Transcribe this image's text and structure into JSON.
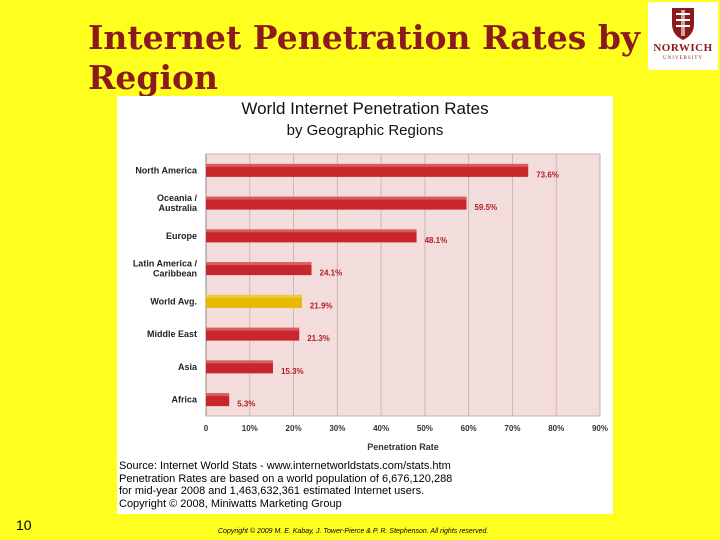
{
  "slide": {
    "title": "Internet Penetration Rates by Region",
    "slide_number": "10",
    "copyright": "Copyright © 2009 M. E. Kabay, J. Tower-Pierce & P. R. Stephenson.  All rights reserved."
  },
  "logo": {
    "name": "NORWICH",
    "subtitle": "UNIVERSITY"
  },
  "colors": {
    "background": "#FFFF1F",
    "title": "#8B1A1A",
    "bar": "#C8262A",
    "highlight_bar": "#E6B800",
    "plot_bg": "#F2DCDC"
  },
  "chart_data": {
    "type": "bar",
    "orientation": "horizontal",
    "title": "World Internet Penetration Rates",
    "subtitle": "by Geographic Regions",
    "xlabel": "Penetration Rate",
    "ylabel": "",
    "xlim": [
      0,
      90
    ],
    "xticks": [
      "0",
      "10%",
      "20%",
      "30%",
      "40%",
      "50%",
      "60%",
      "70%",
      "80%",
      "90%"
    ],
    "grid": true,
    "categories": [
      [
        "North America"
      ],
      [
        "Oceania /",
        "Australia"
      ],
      [
        "Europe"
      ],
      [
        "Latin America /",
        "Caribbean"
      ],
      [
        "World Avg."
      ],
      [
        "Middle East"
      ],
      [
        "Asia"
      ],
      [
        "Africa"
      ]
    ],
    "values": [
      73.6,
      59.5,
      48.1,
      24.1,
      21.9,
      21.3,
      15.3,
      5.3
    ],
    "data_labels": [
      "73.6%",
      "59.5%",
      "48.1%",
      "24.1%",
      "21.9%",
      "21.3%",
      "15.3%",
      "5.3%"
    ],
    "highlight_index": 4
  },
  "source": {
    "lines": [
      "Source: Internet World Stats - www.internetworldstats.com/stats.htm",
      "Penetration Rates are based on a world population of 6,676,120,288",
      "for mid-year 2008 and 1,463,632,361 estimated Internet users.",
      "Copyright © 2008, Miniwatts Marketing Group"
    ]
  }
}
